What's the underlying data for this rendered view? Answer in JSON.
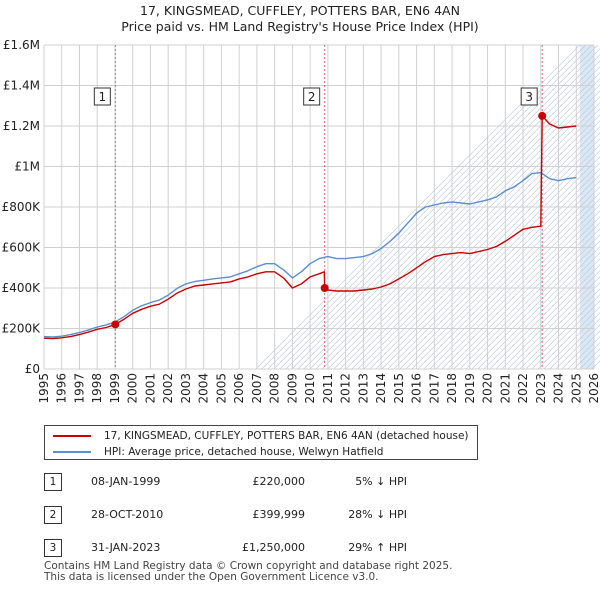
{
  "title": {
    "line1": "17, KINGSMEAD, CUFFLEY, POTTERS BAR, EN6 4AN",
    "line2": "Price paid vs. HM Land Registry's House Price Index (HPI)"
  },
  "colors": {
    "price_line": "#cc0000",
    "hpi_line": "#5b8fd0",
    "sale_marker": "#cc0000",
    "vline": "#d07070",
    "band": "#dde7f4",
    "grid": "#d0d0d0"
  },
  "legend": {
    "price_label": "17, KINGSMEAD, CUFFLEY, POTTERS BAR, EN6 4AN (detached house)",
    "hpi_label": "HPI: Average price, detached house, Welwyn Hatfield"
  },
  "sales": [
    {
      "num": "1",
      "date": "08-JAN-1999",
      "price": "£220,000",
      "pct": "5% ↓ HPI"
    },
    {
      "num": "2",
      "date": "28-OCT-2010",
      "price": "£399,999",
      "pct": "28% ↓ HPI"
    },
    {
      "num": "3",
      "date": "31-JAN-2023",
      "price": "£1,250,000",
      "pct": "29% ↑ HPI"
    }
  ],
  "footer": {
    "line1": "Contains HM Land Registry data © Crown copyright and database right 2025.",
    "line2": "This data is licensed under the Open Government Licence v3.0."
  },
  "chart_data": {
    "type": "line",
    "title": "17, KINGSMEAD, CUFFLEY, POTTERS BAR, EN6 4AN — Price paid vs. HM Land Registry's House Price Index (HPI)",
    "xlabel": "",
    "ylabel": "",
    "xlim": [
      1995,
      2026
    ],
    "ylim": [
      0,
      1600000
    ],
    "x_ticks": [
      "1995",
      "1996",
      "1997",
      "1998",
      "1999",
      "2000",
      "2001",
      "2002",
      "2003",
      "2004",
      "2005",
      "2006",
      "2007",
      "2008",
      "2009",
      "2010",
      "2011",
      "2012",
      "2013",
      "2014",
      "2015",
      "2016",
      "2017",
      "2018",
      "2019",
      "2020",
      "2021",
      "2022",
      "2023",
      "2024",
      "2025",
      "2026"
    ],
    "y_ticks": [
      {
        "value": 0,
        "label": "£0"
      },
      {
        "value": 200000,
        "label": "£200K"
      },
      {
        "value": 400000,
        "label": "£400K"
      },
      {
        "value": 600000,
        "label": "£600K"
      },
      {
        "value": 800000,
        "label": "£800K"
      },
      {
        "value": 1000000,
        "label": "£1M"
      },
      {
        "value": 1200000,
        "label": "£1.2M"
      },
      {
        "value": 1400000,
        "label": "£1.4M"
      },
      {
        "value": 1600000,
        "label": "£1.6M"
      }
    ],
    "grid": true,
    "future_band_start": 2025.2,
    "sale_markers": [
      {
        "label": "1",
        "x": 1999.02,
        "y": 220000
      },
      {
        "label": "2",
        "x": 2010.82,
        "y": 399999
      },
      {
        "label": "3",
        "x": 2023.08,
        "y": 1250000
      }
    ],
    "series": [
      {
        "name": "17, KINGSMEAD, CUFFLEY, POTTERS BAR, EN6 4AN (detached house)",
        "x": [
          1995.0,
          1995.5,
          1996.0,
          1996.5,
          1997.0,
          1997.5,
          1998.0,
          1998.5,
          1999.02,
          1999.5,
          2000.0,
          2000.5,
          2001.0,
          2001.5,
          2002.0,
          2002.5,
          2003.0,
          2003.5,
          2004.0,
          2004.5,
          2005.0,
          2005.5,
          2006.0,
          2006.5,
          2007.0,
          2007.5,
          2008.0,
          2008.5,
          2009.0,
          2009.5,
          2010.0,
          2010.5,
          2010.8,
          2010.82,
          2011.0,
          2011.5,
          2012.0,
          2012.5,
          2013.0,
          2013.5,
          2014.0,
          2014.5,
          2015.0,
          2015.5,
          2016.0,
          2016.5,
          2017.0,
          2017.5,
          2018.0,
          2018.5,
          2019.0,
          2019.5,
          2020.0,
          2020.5,
          2021.0,
          2021.5,
          2022.0,
          2022.5,
          2023.0,
          2023.08,
          2023.5,
          2024.0,
          2024.5,
          2025.0
        ],
        "y": [
          152000,
          150000,
          154000,
          160000,
          170000,
          182000,
          196000,
          205000,
          220000,
          245000,
          275000,
          295000,
          310000,
          320000,
          345000,
          375000,
          395000,
          410000,
          415000,
          420000,
          425000,
          430000,
          445000,
          455000,
          470000,
          480000,
          480000,
          450000,
          400000,
          420000,
          455000,
          470000,
          480000,
          399999,
          390000,
          385000,
          385000,
          385000,
          390000,
          395000,
          405000,
          420000,
          445000,
          470000,
          500000,
          530000,
          555000,
          565000,
          570000,
          575000,
          570000,
          580000,
          590000,
          605000,
          630000,
          660000,
          690000,
          700000,
          705000,
          1250000,
          1210000,
          1190000,
          1195000,
          1200000
        ]
      },
      {
        "name": "HPI: Average price, detached house, Welwyn Hatfield",
        "x": [
          1995.0,
          1995.5,
          1996.0,
          1996.5,
          1997.0,
          1997.5,
          1998.0,
          1998.5,
          1999.0,
          1999.5,
          2000.0,
          2000.5,
          2001.0,
          2001.5,
          2002.0,
          2002.5,
          2003.0,
          2003.5,
          2004.0,
          2004.5,
          2005.0,
          2005.5,
          2006.0,
          2006.5,
          2007.0,
          2007.5,
          2008.0,
          2008.5,
          2009.0,
          2009.5,
          2010.0,
          2010.5,
          2011.0,
          2011.5,
          2012.0,
          2012.5,
          2013.0,
          2013.5,
          2014.0,
          2014.5,
          2015.0,
          2015.5,
          2016.0,
          2016.5,
          2017.0,
          2017.5,
          2018.0,
          2018.5,
          2019.0,
          2019.5,
          2020.0,
          2020.5,
          2021.0,
          2021.5,
          2022.0,
          2022.5,
          2023.0,
          2023.5,
          2024.0,
          2024.5,
          2025.0
        ],
        "y": [
          160000,
          158000,
          162000,
          170000,
          180000,
          193000,
          207000,
          218000,
          232000,
          258000,
          290000,
          312000,
          328000,
          340000,
          365000,
          398000,
          420000,
          432000,
          438000,
          445000,
          450000,
          455000,
          470000,
          485000,
          505000,
          520000,
          520000,
          490000,
          450000,
          480000,
          520000,
          545000,
          555000,
          545000,
          545000,
          550000,
          555000,
          570000,
          595000,
          630000,
          670000,
          720000,
          770000,
          800000,
          810000,
          820000,
          825000,
          820000,
          815000,
          825000,
          835000,
          850000,
          880000,
          900000,
          930000,
          965000,
          970000,
          940000,
          930000,
          940000,
          945000
        ]
      }
    ]
  }
}
